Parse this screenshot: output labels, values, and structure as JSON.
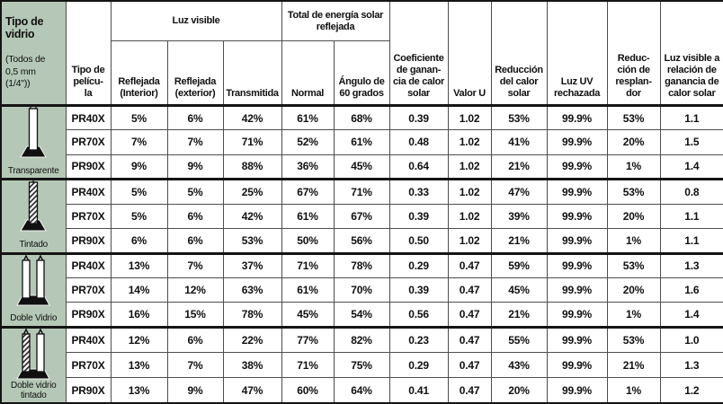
{
  "colors": {
    "header_green": "#b5c8b7",
    "grid_thin": "#4d4d4d",
    "grid_thick": "#141414"
  },
  "table": {
    "header": {
      "glass_type": {
        "title": "Tipo de\nvidrio",
        "subtitle": "(Todos de\n0,5 mm\n(1/4\"))"
      },
      "film_type": "Tipo de\npelícu-\nla",
      "luz_visible": {
        "group": "Luz visible",
        "cols": [
          "Reflejada\n(Interior)",
          "Reflejada\n(exterior)",
          "Transmitida"
        ]
      },
      "energia_solar": {
        "group": "Total de energía solar\nreflejada",
        "cols": [
          "Normal",
          "Ángulo de\n60 grados"
        ]
      },
      "coeficiente": "Coeficiente\nde ganan-\ncia de calor\nsolar",
      "valor_u": "Valor U",
      "reduccion_calor": "Reducción\ndel calor\nsolar",
      "uv": "Luz UV\nrechazada",
      "resplandor": "Reduc-\nción de\nresplan-\ndor",
      "relacion": "Luz visible a\nrelación de\nganancia de\ncalor solar"
    },
    "groups": [
      {
        "glass": "Transparente",
        "icon": "single-clear-pane-icon",
        "rows": [
          {
            "film": "PR40X",
            "values": [
              "5%",
              "6%",
              "42%",
              "61%",
              "68%",
              "0.39",
              "1.02",
              "53%",
              "99.9%",
              "53%",
              "1.1"
            ]
          },
          {
            "film": "PR70X",
            "values": [
              "7%",
              "7%",
              "71%",
              "52%",
              "61%",
              "0.48",
              "1.02",
              "41%",
              "99.9%",
              "20%",
              "1.5"
            ]
          },
          {
            "film": "PR90X",
            "values": [
              "9%",
              "9%",
              "88%",
              "36%",
              "45%",
              "0.64",
              "1.02",
              "21%",
              "99.9%",
              "1%",
              "1.4"
            ]
          }
        ]
      },
      {
        "glass": "Tintado",
        "icon": "single-tinted-pane-icon",
        "rows": [
          {
            "film": "PR40X",
            "values": [
              "5%",
              "5%",
              "25%",
              "67%",
              "71%",
              "0.33",
              "1.02",
              "47%",
              "99.9%",
              "53%",
              "0.8"
            ]
          },
          {
            "film": "PR70X",
            "values": [
              "5%",
              "6%",
              "42%",
              "61%",
              "67%",
              "0.39",
              "1.02",
              "39%",
              "99.9%",
              "20%",
              "1.1"
            ]
          },
          {
            "film": "PR90X",
            "values": [
              "6%",
              "6%",
              "53%",
              "50%",
              "56%",
              "0.50",
              "1.02",
              "21%",
              "99.9%",
              "1%",
              "1.1"
            ]
          }
        ]
      },
      {
        "glass": "Doble Vidrio",
        "icon": "double-clear-pane-icon",
        "rows": [
          {
            "film": "PR40X",
            "values": [
              "13%",
              "7%",
              "37%",
              "71%",
              "78%",
              "0.29",
              "0.47",
              "59%",
              "99.9%",
              "53%",
              "1.3"
            ]
          },
          {
            "film": "PR70X",
            "values": [
              "14%",
              "12%",
              "63%",
              "61%",
              "70%",
              "0.39",
              "0.47",
              "45%",
              "99.9%",
              "20%",
              "1.6"
            ]
          },
          {
            "film": "PR90X",
            "values": [
              "16%",
              "15%",
              "78%",
              "45%",
              "54%",
              "0.56",
              "0.47",
              "21%",
              "99.9%",
              "1%",
              "1.4"
            ]
          }
        ]
      },
      {
        "glass": "Doble vidrio\ntintado",
        "icon": "double-tinted-pane-icon",
        "rows": [
          {
            "film": "PR40X",
            "values": [
              "12%",
              "6%",
              "22%",
              "77%",
              "82%",
              "0.23",
              "0.47",
              "55%",
              "99.9%",
              "53%",
              "1.0"
            ]
          },
          {
            "film": "PR70X",
            "values": [
              "13%",
              "7%",
              "38%",
              "71%",
              "75%",
              "0.29",
              "0.47",
              "43%",
              "99.9%",
              "21%",
              "1.3"
            ]
          },
          {
            "film": "PR90X",
            "values": [
              "13%",
              "9%",
              "47%",
              "60%",
              "64%",
              "0.41",
              "0.47",
              "20%",
              "99.9%",
              "1%",
              "1.2"
            ]
          }
        ]
      }
    ]
  }
}
